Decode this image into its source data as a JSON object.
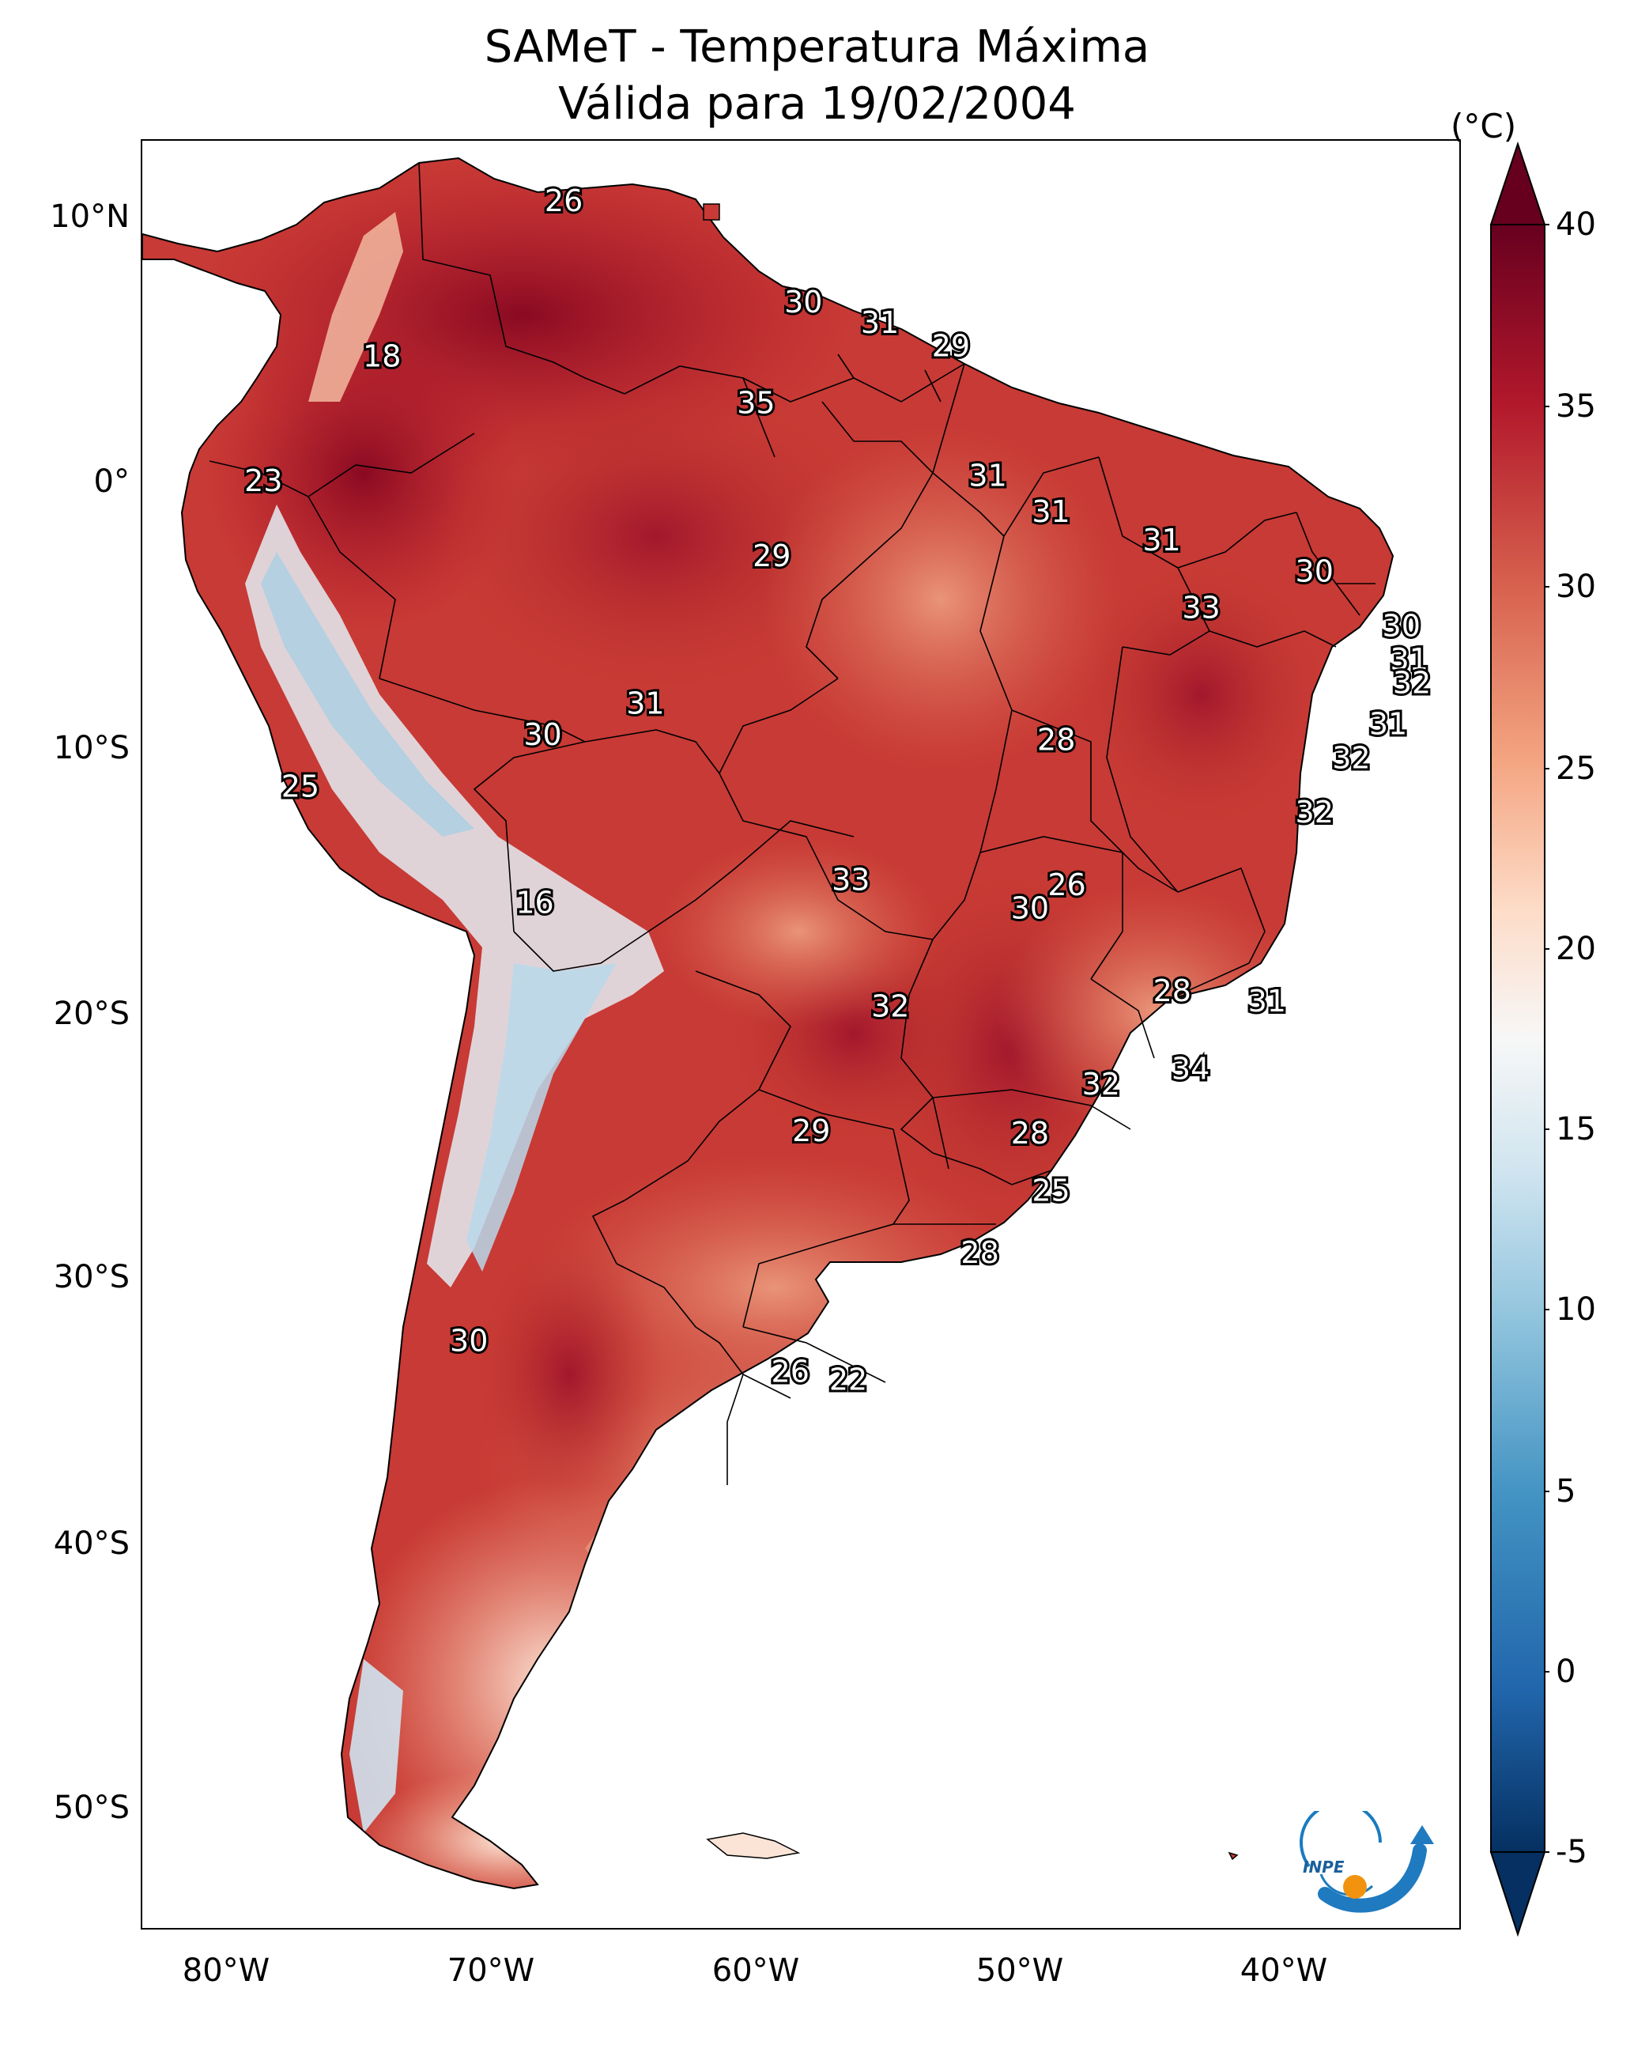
{
  "title": {
    "line1": "SAMeT - Temperatura Máxima",
    "line2": "Válida para 19/02/2004"
  },
  "axes": {
    "lat_labels": [
      "10°N",
      "0°",
      "10°S",
      "20°S",
      "30°S",
      "40°S",
      "50°S"
    ],
    "lon_labels": [
      "80°W",
      "70°W",
      "60°W",
      "50°W",
      "40°W"
    ]
  },
  "colorbar": {
    "unit": "(°C)",
    "ticks": [
      "40",
      "35",
      "30",
      "25",
      "20",
      "15",
      "10",
      "5",
      "0",
      "-5"
    ],
    "min": -5,
    "max": 40,
    "colors": [
      "#053061",
      "#2166ac",
      "#4393c3",
      "#92c5de",
      "#d1e5f0",
      "#f7f7f7",
      "#fddbc7",
      "#f4a582",
      "#d6604d",
      "#b2182b",
      "#67001f"
    ]
  },
  "chart_data": {
    "type": "heatmap",
    "title": "SAMeT - Temperatura Máxima — Válida para 19/02/2004",
    "variable": "Temperatura Máxima",
    "units": "°C",
    "date": "19/02/2004",
    "lon_range": [
      -83,
      -33
    ],
    "lat_range": [
      -56,
      13
    ],
    "colorbar_range": [
      -5,
      40
    ],
    "station_values": [
      {
        "value": "26",
        "lon": -67.0,
        "lat": 10.6
      },
      {
        "value": "30",
        "lon": -57.9,
        "lat": 6.7
      },
      {
        "value": "31",
        "lon": -55.0,
        "lat": 5.9
      },
      {
        "value": "29",
        "lon": -52.3,
        "lat": 5.0
      },
      {
        "value": "18",
        "lon": -73.9,
        "lat": 4.6
      },
      {
        "value": "35",
        "lon": -59.7,
        "lat": 2.8
      },
      {
        "value": "23",
        "lon": -78.4,
        "lat": -0.2
      },
      {
        "value": "31",
        "lon": -50.9,
        "lat": 0.0
      },
      {
        "value": "31",
        "lon": -48.5,
        "lat": -1.4
      },
      {
        "value": "31",
        "lon": -44.3,
        "lat": -2.5
      },
      {
        "value": "29",
        "lon": -59.1,
        "lat": -3.1
      },
      {
        "value": "30",
        "lon": -38.5,
        "lat": -3.7
      },
      {
        "value": "33",
        "lon": -42.8,
        "lat": -5.1
      },
      {
        "value": "30",
        "lon": -35.2,
        "lat": -5.8
      },
      {
        "value": "31",
        "lon": -34.9,
        "lat": -7.1
      },
      {
        "value": "32",
        "lon": -34.8,
        "lat": -8.0
      },
      {
        "value": "31",
        "lon": -63.9,
        "lat": -8.8
      },
      {
        "value": "31",
        "lon": -35.7,
        "lat": -9.6
      },
      {
        "value": "30",
        "lon": -67.8,
        "lat": -10.0
      },
      {
        "value": "28",
        "lon": -48.3,
        "lat": -10.2
      },
      {
        "value": "32",
        "lon": -37.1,
        "lat": -10.9
      },
      {
        "value": "25",
        "lon": -77.0,
        "lat": -12.0
      },
      {
        "value": "32",
        "lon": -38.5,
        "lat": -13.0
      },
      {
        "value": "33",
        "lon": -56.1,
        "lat": -15.6
      },
      {
        "value": "26",
        "lon": -47.9,
        "lat": -15.8
      },
      {
        "value": "16",
        "lon": -68.1,
        "lat": -16.5
      },
      {
        "value": "30",
        "lon": -49.3,
        "lat": -16.7
      },
      {
        "value": "28",
        "lon": -43.9,
        "lat": -19.9
      },
      {
        "value": "31",
        "lon": -40.3,
        "lat": -20.3
      },
      {
        "value": "32",
        "lon": -54.6,
        "lat": -20.5
      },
      {
        "value": "34",
        "lon": -43.2,
        "lat": -22.9
      },
      {
        "value": "32",
        "lon": -46.6,
        "lat": -23.5
      },
      {
        "value": "29",
        "lon": -57.6,
        "lat": -25.3
      },
      {
        "value": "28",
        "lon": -49.3,
        "lat": -25.4
      },
      {
        "value": "25",
        "lon": -48.5,
        "lat": -27.6
      },
      {
        "value": "28",
        "lon": -51.2,
        "lat": -30.0
      },
      {
        "value": "30",
        "lon": -70.6,
        "lat": -33.4
      },
      {
        "value": "26",
        "lon": -58.4,
        "lat": -34.6
      },
      {
        "value": "22",
        "lon": -56.2,
        "lat": -34.9
      }
    ]
  },
  "logo": {
    "text": "INPE"
  }
}
